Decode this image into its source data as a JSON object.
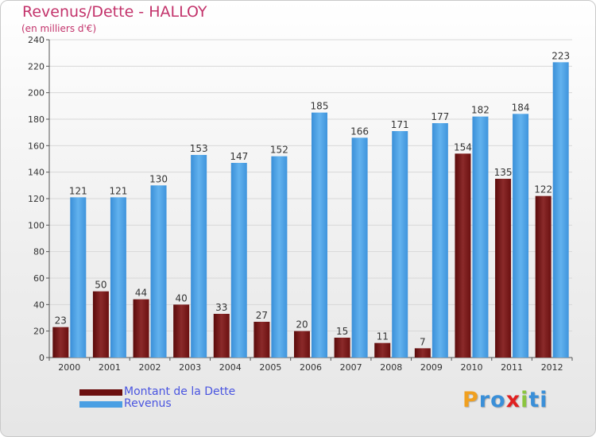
{
  "title": "Revenus/Dette - HALLOY",
  "subtitle": "(en milliers d'€)",
  "chart_data": {
    "type": "bar",
    "title": "Revenus/Dette - HALLOY",
    "subtitle": "(en milliers d'€)",
    "xlabel": "",
    "ylabel": "",
    "categories": [
      "2000",
      "2001",
      "2002",
      "2003",
      "2004",
      "2005",
      "2006",
      "2007",
      "2008",
      "2009",
      "2010",
      "2011",
      "2012"
    ],
    "series": [
      {
        "name": "Montant de la Dette",
        "color": "#7a1a1a",
        "values": [
          23,
          50,
          44,
          40,
          33,
          27,
          20,
          15,
          11,
          7,
          154,
          135,
          122
        ]
      },
      {
        "name": "Revenus",
        "color": "#4fa3e6",
        "values": [
          121,
          121,
          130,
          153,
          147,
          152,
          185,
          166,
          171,
          177,
          182,
          184,
          223
        ]
      }
    ],
    "ylim": [
      0,
      240
    ],
    "yticks": [
      0,
      20,
      40,
      60,
      80,
      100,
      120,
      140,
      160,
      180,
      200,
      220,
      240
    ],
    "grid": true,
    "legend": "bottom-left"
  },
  "legend": {
    "items": [
      {
        "label": "Montant de la Dette",
        "color": "#6b0f0f"
      },
      {
        "label": "Revenus",
        "color": "#4a9fe3"
      }
    ]
  },
  "logo": {
    "letters": [
      "P",
      "r",
      "o",
      "x",
      "i",
      "t",
      "i"
    ],
    "colors": [
      "#f0a020",
      "#3a8fd8",
      "#3a8fd8",
      "#e02020",
      "#8bc53f",
      "#3a8fd8",
      "#3a8fd8"
    ]
  }
}
